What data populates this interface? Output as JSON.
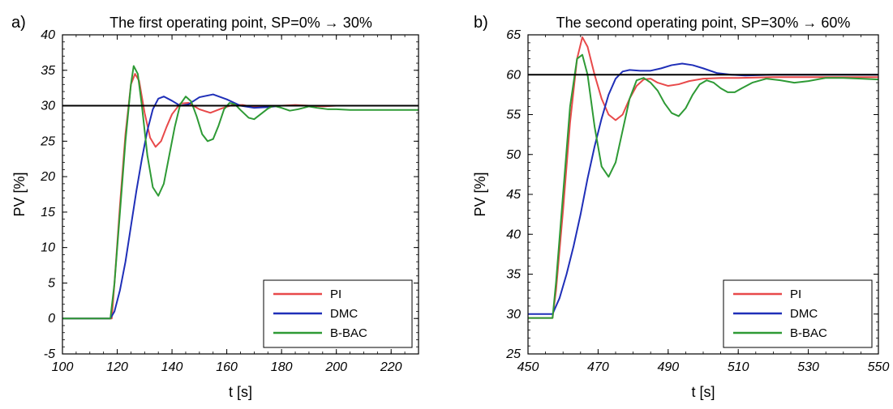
{
  "chart_data": [
    {
      "type": "line",
      "panel": "a)",
      "title": "The first operating point, SP=0% → 30%",
      "xlabel": "t [s]",
      "ylabel": "PV [%]",
      "xlim": [
        100,
        230
      ],
      "ylim": [
        -5,
        40
      ],
      "xticks": [
        100,
        120,
        140,
        160,
        180,
        200,
        220
      ],
      "yticks": [
        -5,
        0,
        5,
        10,
        15,
        20,
        25,
        30,
        35,
        40
      ],
      "legend_position": "bottom-right",
      "setpoint": {
        "value": 30,
        "color": "#000000"
      },
      "series": [
        {
          "name": "PI",
          "color": "#e8494a",
          "x": [
            100,
            118,
            119,
            121,
            123,
            125,
            126.5,
            128,
            130,
            132,
            134,
            136,
            138,
            140,
            143,
            146,
            150,
            154,
            158,
            162,
            166,
            170,
            175,
            180,
            185,
            190,
            195,
            200,
            210,
            220,
            230
          ],
          "y": [
            0,
            0,
            5,
            16,
            26,
            33,
            34.5,
            33.5,
            29,
            25.5,
            24.2,
            25,
            27,
            28.8,
            30.3,
            30.4,
            29.5,
            29,
            29.6,
            30.1,
            30.1,
            29.8,
            29.8,
            30,
            30.1,
            30,
            29.9,
            30,
            30,
            30,
            30
          ]
        },
        {
          "name": "DMC",
          "color": "#1f2fb8",
          "x": [
            100,
            117.5,
            119,
            121,
            123,
            125,
            127,
            129,
            131,
            133,
            135,
            137,
            140,
            143,
            146,
            150,
            155,
            160,
            165,
            170,
            175,
            180,
            190,
            200,
            210,
            220,
            230
          ],
          "y": [
            0,
            0,
            1,
            4,
            8,
            13,
            18,
            22.5,
            26.5,
            29.5,
            31,
            31.3,
            30.7,
            30,
            30.2,
            31.2,
            31.6,
            30.9,
            30,
            29.7,
            29.8,
            30,
            30,
            30,
            30,
            30,
            30
          ]
        },
        {
          "name": "B-BAC",
          "color": "#2e9a35",
          "x": [
            100,
            117.5,
            119,
            121,
            123,
            125,
            126,
            127.5,
            129,
            131,
            133,
            135,
            137,
            139,
            141,
            143,
            145,
            147,
            149,
            151,
            153,
            155,
            157,
            159,
            161,
            163,
            165,
            168,
            170,
            172,
            175,
            177,
            180,
            183,
            186,
            190,
            193,
            197,
            200,
            205,
            210,
            220,
            230
          ],
          "y": [
            0,
            0,
            5,
            15,
            25,
            33,
            35.6,
            34.5,
            30,
            23,
            18.5,
            17.3,
            19,
            23,
            27,
            30.2,
            31.3,
            30.6,
            28.5,
            26,
            25,
            25.3,
            27.2,
            29.5,
            30.4,
            30.2,
            29.4,
            28.3,
            28.1,
            28.7,
            29.6,
            30,
            29.7,
            29.3,
            29.5,
            29.9,
            29.7,
            29.5,
            29.5,
            29.4,
            29.4,
            29.4,
            29.4
          ]
        }
      ]
    },
    {
      "type": "line",
      "panel": "b)",
      "title": "The second operating point, SP=30% → 60%",
      "xlabel": "t [s]",
      "ylabel": "PV [%]",
      "xlim": [
        450,
        550
      ],
      "ylim": [
        25,
        65
      ],
      "xticks": [
        450,
        470,
        490,
        510,
        530,
        550
      ],
      "yticks": [
        25,
        30,
        35,
        40,
        45,
        50,
        55,
        60,
        65
      ],
      "legend_position": "bottom-right",
      "setpoint": {
        "value": 60,
        "color": "#000000"
      },
      "series": [
        {
          "name": "PI",
          "color": "#e8494a",
          "x": [
            450,
            457,
            458,
            460,
            462,
            464,
            465.5,
            467,
            469,
            471,
            473,
            475,
            477,
            479,
            481,
            483,
            485,
            487,
            490,
            493,
            496,
            500,
            505,
            510,
            520,
            530,
            540,
            550
          ],
          "y": [
            29.5,
            29.5,
            33,
            43,
            54,
            62,
            64.7,
            63.5,
            60,
            57,
            55,
            54.3,
            55,
            57,
            58.6,
            59.4,
            59.5,
            59,
            58.6,
            58.8,
            59.2,
            59.5,
            59.6,
            59.6,
            59.7,
            59.7,
            59.7,
            59.7
          ]
        },
        {
          "name": "DMC",
          "color": "#1f2fb8",
          "x": [
            450,
            457,
            459,
            461,
            463,
            465,
            467,
            469,
            471,
            473,
            475,
            477,
            479,
            482,
            485,
            488,
            491,
            494,
            497,
            500,
            504,
            508,
            512,
            520,
            530,
            540,
            550
          ],
          "y": [
            30,
            30,
            32,
            35,
            38.5,
            42.5,
            47,
            51,
            54.5,
            57.5,
            59.5,
            60.4,
            60.6,
            60.5,
            60.5,
            60.8,
            61.2,
            61.4,
            61.2,
            60.8,
            60.2,
            60,
            59.9,
            60,
            60,
            60,
            60
          ]
        },
        {
          "name": "B-BAC",
          "color": "#2e9a35",
          "x": [
            450,
            457,
            458,
            460,
            462,
            464,
            465.5,
            467,
            469,
            471,
            473,
            475,
            477,
            479,
            481,
            483,
            485,
            487,
            489,
            491,
            493,
            495,
            497,
            499,
            501,
            503,
            505,
            507,
            509,
            511,
            514,
            518,
            522,
            526,
            530,
            535,
            540,
            545,
            550
          ],
          "y": [
            29.5,
            29.5,
            34,
            45,
            56,
            62,
            62.5,
            60,
            53.5,
            48.5,
            47.2,
            49,
            53,
            57,
            59.3,
            59.6,
            59,
            58,
            56.4,
            55.2,
            54.8,
            55.8,
            57.5,
            58.8,
            59.3,
            59,
            58.3,
            57.8,
            57.8,
            58.3,
            59,
            59.5,
            59.3,
            59,
            59.2,
            59.6,
            59.6,
            59.5,
            59.4
          ]
        }
      ]
    }
  ]
}
